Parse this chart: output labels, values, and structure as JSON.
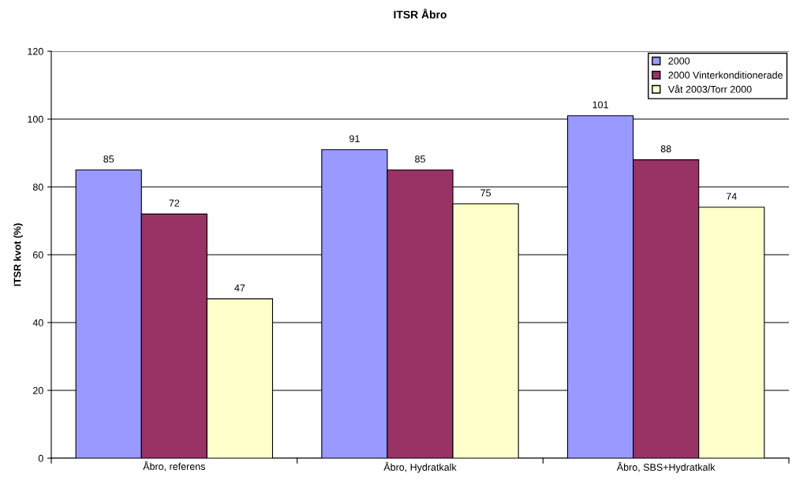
{
  "chart_data": {
    "type": "bar",
    "title": "ITSR Åbro",
    "ylabel": "ITSR kvot (%)",
    "categories": [
      "Åbro, referens",
      "Åbro, Hydratkalk",
      "Åbro, SBS+Hydratkalk"
    ],
    "series": [
      {
        "name": "2000",
        "color": "#9999ff",
        "values": [
          85,
          91,
          101
        ]
      },
      {
        "name": "2000 Vinterkonditionerade",
        "color": "#993366",
        "values": [
          72,
          85,
          88
        ]
      },
      {
        "name": "Våt 2003/Torr 2000",
        "color": "#ffffcc",
        "values": [
          47,
          75,
          74
        ]
      }
    ],
    "ylim": [
      0,
      120
    ],
    "yticks": [
      0,
      20,
      40,
      60,
      80,
      100,
      120
    ],
    "grid": "y",
    "legend": "top right",
    "data_labels": true
  }
}
